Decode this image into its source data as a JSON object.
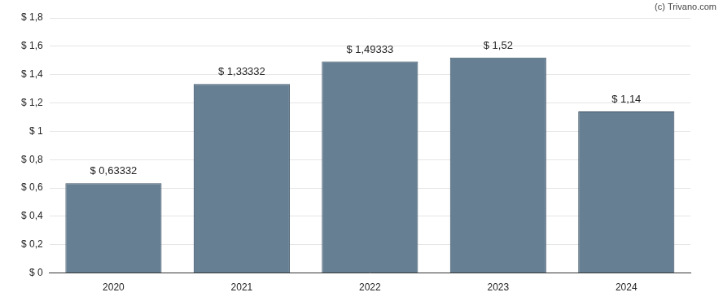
{
  "chart_data": {
    "type": "bar",
    "categories": [
      "2020",
      "2021",
      "2022",
      "2023",
      "2024"
    ],
    "values": [
      0.63332,
      1.33332,
      1.49333,
      1.52,
      1.14
    ],
    "value_labels": [
      "$ 0,63332",
      "$ 1,33332",
      "$ 1,49333",
      "$ 1,52",
      "$ 1,14"
    ],
    "data_labels": true,
    "color": "#667f93",
    "ylim": [
      0,
      1.8
    ],
    "yticks": [
      {
        "value": 0,
        "label": "$ 0"
      },
      {
        "value": 0.2,
        "label": "$ 0,2"
      },
      {
        "value": 0.4,
        "label": "$ 0,4"
      },
      {
        "value": 0.6,
        "label": "$ 0,6"
      },
      {
        "value": 0.8,
        "label": "$ 0,8"
      },
      {
        "value": 1,
        "label": "$ 1"
      },
      {
        "value": 1.2,
        "label": "$ 1,2"
      },
      {
        "value": 1.4,
        "label": "$ 1,4"
      },
      {
        "value": 1.6,
        "label": "$ 1,6"
      },
      {
        "value": 1.8,
        "label": "$ 1,8"
      }
    ],
    "grid": true,
    "annotations": [
      "(c) Trivano.com"
    ]
  }
}
